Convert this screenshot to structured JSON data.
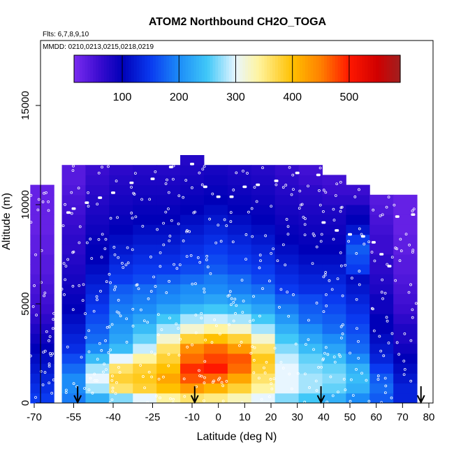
{
  "chart_data": {
    "type": "heatmap",
    "title": "ATOM2 Northbound CH2O_TOGA",
    "flights_label": "Flts: 6,7,8,9,10",
    "dates_label": "MMDD: 0210,0213,0215,0218,0219",
    "xlabel": "Latitude (deg N)",
    "ylabel": "Altitude (m)",
    "xlim": [
      -70,
      80
    ],
    "ylim": [
      0,
      17500
    ],
    "x_ticks": [
      {
        "v": -70,
        "t": "-70"
      },
      {
        "v": -55,
        "t": "-55"
      },
      {
        "v": -40,
        "t": "-40"
      },
      {
        "v": -25,
        "t": "-25"
      },
      {
        "v": -10,
        "t": "-10"
      },
      {
        "v": 0,
        "t": "0"
      },
      {
        "v": 10,
        "t": "10"
      },
      {
        "v": 20,
        "t": "20"
      },
      {
        "v": 30,
        "t": "30"
      },
      {
        "v": 40,
        "t": "40"
      },
      {
        "v": 50,
        "t": "50"
      },
      {
        "v": 60,
        "t": "60"
      },
      {
        "v": 70,
        "t": "70"
      },
      {
        "v": 80,
        "t": "80"
      }
    ],
    "y_ticks": [
      {
        "v": 0,
        "t": "0"
      },
      {
        "v": 5000,
        "t": "5000"
      },
      {
        "v": 10000,
        "t": "10000"
      },
      {
        "v": 15000,
        "t": "15000"
      }
    ],
    "colorbar": {
      "min": 15,
      "max": 590,
      "ticks": [
        {
          "v": 100,
          "t": "100"
        },
        {
          "v": 200,
          "t": "200"
        },
        {
          "v": 300,
          "t": "300"
        },
        {
          "v": 400,
          "t": "400"
        },
        {
          "v": 500,
          "t": "500"
        }
      ],
      "stops": [
        {
          "v": 15,
          "c": "#7a2cf0"
        },
        {
          "v": 60,
          "c": "#3a0cd0"
        },
        {
          "v": 100,
          "c": "#0000b8"
        },
        {
          "v": 150,
          "c": "#0a3af0"
        },
        {
          "v": 200,
          "c": "#1c8cf8"
        },
        {
          "v": 250,
          "c": "#40c8f8"
        },
        {
          "v": 300,
          "c": "#e8f6ff"
        },
        {
          "v": 340,
          "c": "#fff4a0"
        },
        {
          "v": 400,
          "c": "#ffc000"
        },
        {
          "v": 450,
          "c": "#ff8000"
        },
        {
          "v": 500,
          "c": "#ff1800"
        },
        {
          "v": 550,
          "c": "#d00000"
        },
        {
          "v": 590,
          "c": "#a02020"
        }
      ]
    },
    "lat_bins": [
      -67,
      -55,
      -46,
      -37,
      -28,
      -19,
      -10,
      -1,
      8,
      17,
      26,
      35,
      44,
      53,
      62,
      71
    ],
    "alt_bins": [
      250,
      750,
      1250,
      1750,
      2250,
      2750,
      3250,
      3750,
      4250,
      4750,
      5250,
      5750,
      6250,
      6750,
      7250,
      7750,
      8250,
      8750,
      9250,
      9750,
      10250,
      10750,
      11250,
      11750,
      12250
    ],
    "grid_values": [
      [
        150,
        190,
        230,
        270,
        300,
        340,
        360,
        350,
        330,
        300,
        270,
        250,
        230,
        200,
        170,
        130
      ],
      [
        140,
        200,
        280,
        360,
        380,
        400,
        430,
        410,
        380,
        340,
        300,
        280,
        260,
        230,
        180,
        130
      ],
      [
        130,
        200,
        300,
        380,
        390,
        420,
        470,
        460,
        420,
        360,
        300,
        280,
        270,
        240,
        170,
        120
      ],
      [
        120,
        180,
        280,
        360,
        380,
        400,
        490,
        500,
        460,
        380,
        300,
        270,
        260,
        230,
        150,
        110
      ],
      [
        110,
        160,
        240,
        300,
        340,
        380,
        460,
        480,
        470,
        390,
        290,
        260,
        240,
        200,
        130,
        100
      ],
      [
        100,
        140,
        200,
        240,
        290,
        360,
        440,
        460,
        430,
        360,
        270,
        240,
        220,
        180,
        120,
        90
      ],
      [
        90,
        130,
        180,
        220,
        260,
        320,
        380,
        400,
        380,
        320,
        250,
        220,
        200,
        170,
        110,
        80
      ],
      [
        80,
        120,
        170,
        210,
        240,
        280,
        320,
        340,
        320,
        280,
        230,
        200,
        180,
        160,
        100,
        80
      ],
      [
        70,
        110,
        160,
        200,
        220,
        250,
        280,
        290,
        280,
        250,
        210,
        180,
        170,
        150,
        100,
        70
      ],
      [
        60,
        100,
        150,
        190,
        200,
        220,
        240,
        250,
        240,
        220,
        190,
        170,
        160,
        140,
        90,
        60
      ],
      [
        55,
        95,
        140,
        180,
        190,
        200,
        210,
        220,
        210,
        200,
        170,
        160,
        150,
        130,
        90,
        55
      ],
      [
        50,
        90,
        130,
        170,
        180,
        190,
        200,
        200,
        190,
        180,
        150,
        140,
        140,
        120,
        80,
        50
      ],
      [
        45,
        85,
        120,
        150,
        160,
        170,
        180,
        190,
        180,
        160,
        140,
        130,
        130,
        110,
        75,
        45
      ],
      [
        40,
        80,
        110,
        140,
        150,
        150,
        160,
        170,
        160,
        150,
        130,
        120,
        120,
        150,
        70,
        40
      ],
      [
        40,
        75,
        100,
        130,
        140,
        140,
        150,
        160,
        150,
        140,
        120,
        110,
        110,
        160,
        70,
        40
      ],
      [
        35,
        70,
        100,
        120,
        130,
        130,
        140,
        150,
        140,
        130,
        110,
        100,
        100,
        170,
        60,
        35
      ],
      [
        35,
        70,
        95,
        110,
        120,
        120,
        130,
        140,
        130,
        120,
        100,
        95,
        95,
        150,
        60,
        35
      ],
      [
        30,
        65,
        90,
        100,
        110,
        110,
        120,
        130,
        120,
        110,
        95,
        90,
        90,
        120,
        55,
        30
      ],
      [
        30,
        60,
        85,
        95,
        100,
        100,
        110,
        120,
        110,
        100,
        90,
        85,
        85,
        100,
        50,
        30
      ],
      [
        30,
        55,
        80,
        90,
        95,
        95,
        100,
        110,
        100,
        95,
        85,
        80,
        80,
        90,
        45,
        30
      ],
      [
        30,
        50,
        75,
        85,
        90,
        90,
        95,
        100,
        95,
        90,
        80,
        75,
        70,
        70,
        40,
        30
      ],
      [
        30,
        45,
        70,
        80,
        85,
        85,
        90,
        95,
        90,
        85,
        75,
        70,
        60,
        60,
        null,
        null
      ],
      [
        null,
        40,
        65,
        75,
        80,
        80,
        85,
        90,
        85,
        80,
        70,
        60,
        55,
        null,
        null,
        null
      ],
      [
        null,
        40,
        60,
        70,
        75,
        75,
        80,
        85,
        80,
        75,
        65,
        55,
        null,
        null,
        null,
        null
      ],
      [
        null,
        null,
        null,
        null,
        null,
        null,
        75,
        null,
        null,
        null,
        null,
        null,
        null,
        null,
        null,
        null
      ]
    ],
    "flight_track": [
      [
        -57,
        9600
      ],
      [
        -55,
        9800
      ],
      [
        -50,
        10100
      ],
      [
        -45,
        10350
      ],
      [
        -40,
        10600
      ],
      [
        -33,
        11100
      ],
      [
        -25,
        11300
      ],
      [
        -18,
        11900
      ],
      [
        -10,
        12050
      ],
      [
        -5,
        10900
      ],
      [
        0,
        10400
      ],
      [
        5,
        10400
      ],
      [
        10,
        10900
      ],
      [
        15,
        11000
      ],
      [
        22,
        11200
      ],
      [
        30,
        11600
      ],
      [
        38,
        11500
      ],
      [
        40,
        9100
      ],
      [
        45,
        8700
      ],
      [
        50,
        8500
      ],
      [
        55,
        8400
      ],
      [
        59,
        8100
      ],
      [
        62,
        7500
      ],
      [
        65,
        6900
      ],
      [
        68,
        9400
      ],
      [
        74,
        9500
      ]
    ],
    "arrows_lat": [
      -53.5,
      -9,
      39,
      77
    ]
  }
}
